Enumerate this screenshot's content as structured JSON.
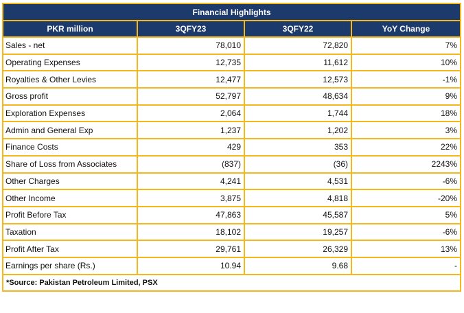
{
  "table": {
    "title": "Financial Highlights",
    "columns": [
      "PKR million",
      "3QFY23",
      "3QFY22",
      "YoY Change"
    ],
    "rows": [
      {
        "label": "Sales - net",
        "fy23": "78,010",
        "fy22": "72,820",
        "yoy": "7%"
      },
      {
        "label": "Operating Expenses",
        "fy23": "12,735",
        "fy22": "11,612",
        "yoy": "10%"
      },
      {
        "label": "Royalties & Other Levies",
        "fy23": "12,477",
        "fy22": "12,573",
        "yoy": "-1%"
      },
      {
        "label": "Gross profit",
        "fy23": "52,797",
        "fy22": "48,634",
        "yoy": "9%"
      },
      {
        "label": "Exploration Expenses",
        "fy23": "2,064",
        "fy22": "1,744",
        "yoy": "18%"
      },
      {
        "label": "Admin and General Exp",
        "fy23": "1,237",
        "fy22": "1,202",
        "yoy": "3%"
      },
      {
        "label": "Finance Costs",
        "fy23": "429",
        "fy22": "353",
        "yoy": "22%"
      },
      {
        "label": "Share of Loss from Associates",
        "fy23": "(837)",
        "fy22": "(36)",
        "yoy": "2243%"
      },
      {
        "label": "Other Charges",
        "fy23": "4,241",
        "fy22": "4,531",
        "yoy": "-6%"
      },
      {
        "label": "Other Income",
        "fy23": "3,875",
        "fy22": "4,818",
        "yoy": "-20%"
      },
      {
        "label": "Profit Before Tax",
        "fy23": "47,863",
        "fy22": "45,587",
        "yoy": "5%"
      },
      {
        "label": "Taxation",
        "fy23": "18,102",
        "fy22": "19,257",
        "yoy": "-6%"
      },
      {
        "label": "Profit After Tax",
        "fy23": "29,761",
        "fy22": "26,329",
        "yoy": "13%"
      },
      {
        "label": "Earnings per share (Rs.)",
        "fy23": "10.94",
        "fy22": "9.68",
        "yoy": "-"
      }
    ],
    "source": "*Source: Pakistan Petroleum Limited, PSX"
  },
  "colors": {
    "header_bg": "#1d3a6d",
    "border": "#f5b81c"
  }
}
